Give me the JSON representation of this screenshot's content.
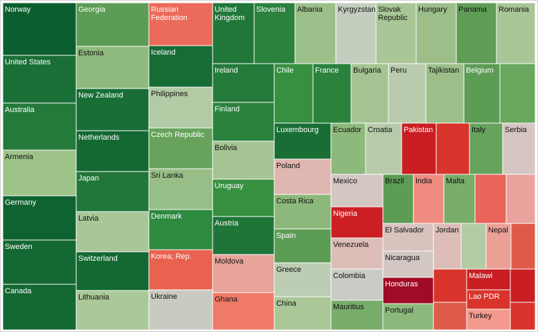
{
  "chart_data": {
    "type": "treemap",
    "title": "",
    "color_scale": {
      "low": "#a00b25",
      "mid": "#c8c8c8",
      "high": "#0b5e2e",
      "note_dark_label_color": "#ffffff",
      "note_light_label_color": "#111111"
    },
    "tiles": [
      {
        "label": "Norway",
        "color": "#0b5e2e",
        "text_color": "#ffffff"
      },
      {
        "label": "United States",
        "color": "#1a6f37",
        "text_color": "#ffffff"
      },
      {
        "label": "Australia",
        "color": "#247a3a",
        "text_color": "#ffffff"
      },
      {
        "label": "Armenia",
        "color": "#9dc389",
        "text_color": "#111111"
      },
      {
        "label": "Germany",
        "color": "#0f6330",
        "text_color": "#ffffff"
      },
      {
        "label": "Sweden",
        "color": "#146832",
        "text_color": "#ffffff"
      },
      {
        "label": "Canada",
        "color": "#146832",
        "text_color": "#ffffff"
      },
      {
        "label": "Georgia",
        "color": "#5c9c55",
        "text_color": "#ffffff"
      },
      {
        "label": "Estonia",
        "color": "#8fba7d",
        "text_color": "#111111"
      },
      {
        "label": "New Zealand",
        "color": "#196e36",
        "text_color": "#ffffff"
      },
      {
        "label": "Netherlands",
        "color": "#146832",
        "text_color": "#ffffff"
      },
      {
        "label": "Japan",
        "color": "#217739",
        "text_color": "#ffffff"
      },
      {
        "label": "Latvia",
        "color": "#a8c796",
        "text_color": "#111111"
      },
      {
        "label": "Switzerland",
        "color": "#146832",
        "text_color": "#ffffff"
      },
      {
        "label": "Lithuania",
        "color": "#aac898",
        "text_color": "#111111"
      },
      {
        "label": "Russian Federation",
        "color": "#ec6a5a",
        "text_color": "#ffffff"
      },
      {
        "label": "Iceland",
        "color": "#176b34",
        "text_color": "#ffffff"
      },
      {
        "label": "Philippines",
        "color": "#b2cba4",
        "text_color": "#111111"
      },
      {
        "label": "Czech Republic",
        "color": "#67a35d",
        "text_color": "#ffffff"
      },
      {
        "label": "Sri Lanka",
        "color": "#97be86",
        "text_color": "#111111"
      },
      {
        "label": "Denmark",
        "color": "#2d8a3f",
        "text_color": "#ffffff"
      },
      {
        "label": "Korea; Rep.",
        "color": "#e8624f",
        "text_color": "#ffffff"
      },
      {
        "label": "Ukraine",
        "color": "#c9cbc3",
        "text_color": "#111111"
      },
      {
        "label": "United Kingdom",
        "color": "#217739",
        "text_color": "#ffffff"
      },
      {
        "label": "Slovenia",
        "color": "#2a823d",
        "text_color": "#ffffff"
      },
      {
        "label": "Ireland",
        "color": "#247a3a",
        "text_color": "#ffffff"
      },
      {
        "label": "Finland",
        "color": "#2a823d",
        "text_color": "#ffffff"
      },
      {
        "label": "Bolivia",
        "color": "#a5c493",
        "text_color": "#111111"
      },
      {
        "label": "Uruguay",
        "color": "#36903f",
        "text_color": "#ffffff"
      },
      {
        "label": "Austria",
        "color": "#1f7538",
        "text_color": "#ffffff"
      },
      {
        "label": "Moldova",
        "color": "#e8a49a",
        "text_color": "#111111"
      },
      {
        "label": "Ghana",
        "color": "#f07a68",
        "text_color": "#111111"
      },
      {
        "label": "Albania",
        "color": "#9cc08a",
        "text_color": "#111111"
      },
      {
        "label": "Kyrgyzstan",
        "color": "#c4cebf",
        "text_color": "#111111"
      },
      {
        "label": "Slovak Republic",
        "color": "#a9c697",
        "text_color": "#111111"
      },
      {
        "label": "Hungary",
        "color": "#9cbf8a",
        "text_color": "#111111"
      },
      {
        "label": "Panama",
        "color": "#5f9d56",
        "text_color": "#111111"
      },
      {
        "label": "Romania",
        "color": "#a9c697",
        "text_color": "#111111"
      },
      {
        "label": "Chile",
        "color": "#36903f",
        "text_color": "#ffffff"
      },
      {
        "label": "France",
        "color": "#2a823d",
        "text_color": "#ffffff"
      },
      {
        "label": "Bulgaria",
        "color": "#a5c493",
        "text_color": "#111111"
      },
      {
        "label": "Peru",
        "color": "#b9cbac",
        "text_color": "#111111"
      },
      {
        "label": "Tajikistan",
        "color": "#9cbf8a",
        "text_color": "#111111"
      },
      {
        "label": "Belgium",
        "color": "#5c9c55",
        "text_color": "#ffffff"
      },
      {
        "label": "Luxembourg",
        "color": "#196e36",
        "text_color": "#ffffff"
      },
      {
        "label": "Ecuador",
        "color": "#8eb97c",
        "text_color": "#111111"
      },
      {
        "label": "Croatia",
        "color": "#b7cbaa",
        "text_color": "#111111"
      },
      {
        "label": "Pakistan",
        "color": "#c91f23",
        "text_color": "#ffffff"
      },
      {
        "label": "Italy",
        "color": "#67a35d",
        "text_color": "#111111"
      },
      {
        "label": "Serbia",
        "color": "#d6c6c3",
        "text_color": "#111111"
      },
      {
        "label": "Poland",
        "color": "#e0b6b0",
        "text_color": "#111111"
      },
      {
        "label": "Costa Rica",
        "color": "#8cb97b",
        "text_color": "#111111"
      },
      {
        "label": "Spain",
        "color": "#5c9c55",
        "text_color": "#ffffff"
      },
      {
        "label": "Greece",
        "color": "#bccdb3",
        "text_color": "#111111"
      },
      {
        "label": "China",
        "color": "#aac798",
        "text_color": "#111111"
      },
      {
        "label": "Mexico",
        "color": "#d3c7c4",
        "text_color": "#111111"
      },
      {
        "label": "Nigeria",
        "color": "#cc1f23",
        "text_color": "#ffffff"
      },
      {
        "label": "Venezuela",
        "color": "#dcbdb8",
        "text_color": "#111111"
      },
      {
        "label": "Colombia",
        "color": "#c9cbc4",
        "text_color": "#111111"
      },
      {
        "label": "Mauritius",
        "color": "#79ad6b",
        "text_color": "#111111"
      },
      {
        "label": "Brazil",
        "color": "#5c9c55",
        "text_color": "#111111"
      },
      {
        "label": "India",
        "color": "#f08b80",
        "text_color": "#111111"
      },
      {
        "label": "Malta",
        "color": "#79ad6b",
        "text_color": "#111111"
      },
      {
        "label": "El Salvador",
        "color": "#d8c2be",
        "text_color": "#111111"
      },
      {
        "label": "Jordan",
        "color": "#dcbdb8",
        "text_color": "#111111"
      },
      {
        "label": "Nepal",
        "color": "#eba096",
        "text_color": "#111111"
      },
      {
        "label": "Nicaragua",
        "color": "#d3c7c4",
        "text_color": "#111111"
      },
      {
        "label": "Honduras",
        "color": "#a00b25",
        "text_color": "#ffffff"
      },
      {
        "label": "Portugal",
        "color": "#8cb97b",
        "text_color": "#111111"
      },
      {
        "label": "Malawi",
        "color": "#c91f23",
        "text_color": "#ffffff"
      },
      {
        "label": "Lao PDR",
        "color": "#d9342b",
        "text_color": "#ffffff"
      },
      {
        "label": "Turkey",
        "color": "#f3998e",
        "text_color": "#111111"
      }
    ],
    "unlabeled_cells": [
      {
        "color": "#d9342b"
      },
      {
        "color": "#6aa85f"
      },
      {
        "color": "#e9655a"
      },
      {
        "color": "#e9a39c"
      },
      {
        "color": "#b2cba4"
      },
      {
        "color": "#e05a4a"
      },
      {
        "color": "#d9342b"
      },
      {
        "color": "#e05a4a"
      },
      {
        "color": "#c91f23"
      },
      {
        "color": "#d9342b"
      }
    ]
  }
}
